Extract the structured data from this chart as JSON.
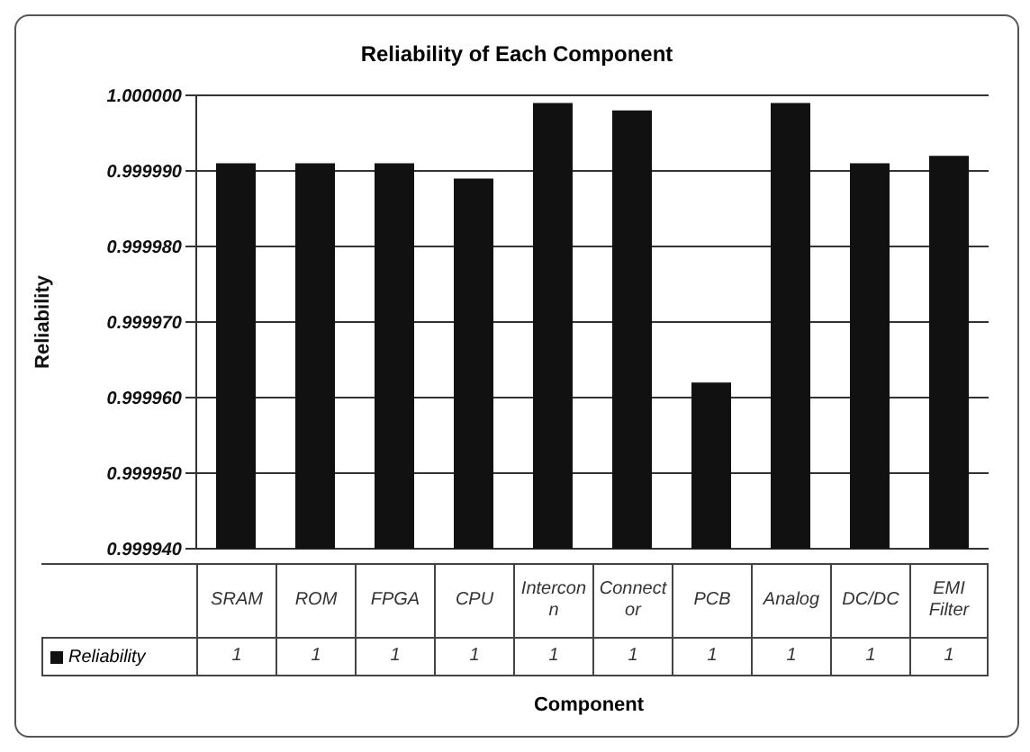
{
  "chart_data": {
    "type": "bar",
    "title": "Reliability of Each Component",
    "xlabel": "Component",
    "ylabel": "Reliability",
    "categories": [
      "SRAM",
      "ROM",
      "FPGA",
      "CPU",
      "Interconn",
      "Connector",
      "PCB",
      "Analog",
      "DC/DC",
      "EMI Filter"
    ],
    "series": [
      {
        "name": "Reliability",
        "color": "#111111",
        "values": [
          0.999991,
          0.999991,
          0.999991,
          0.999989,
          0.999999,
          0.999998,
          0.999962,
          0.999999,
          0.999991,
          0.999992
        ],
        "value_labels": [
          "1",
          "1",
          "1",
          "1",
          "1",
          "1",
          "1",
          "1",
          "1",
          "1"
        ]
      }
    ],
    "ylim": [
      0.99994,
      1.0
    ],
    "yticks": [
      {
        "value": 0.99994,
        "label": "0.999940"
      },
      {
        "value": 0.99995,
        "label": "0.999950"
      },
      {
        "value": 0.99996,
        "label": "0.999960"
      },
      {
        "value": 0.99997,
        "label": "0.999970"
      },
      {
        "value": 0.99998,
        "label": "0.999980"
      },
      {
        "value": 0.99999,
        "label": "0.999990"
      },
      {
        "value": 1.0,
        "label": "1.000000"
      }
    ],
    "grid": "y",
    "legend": "bottom left"
  }
}
